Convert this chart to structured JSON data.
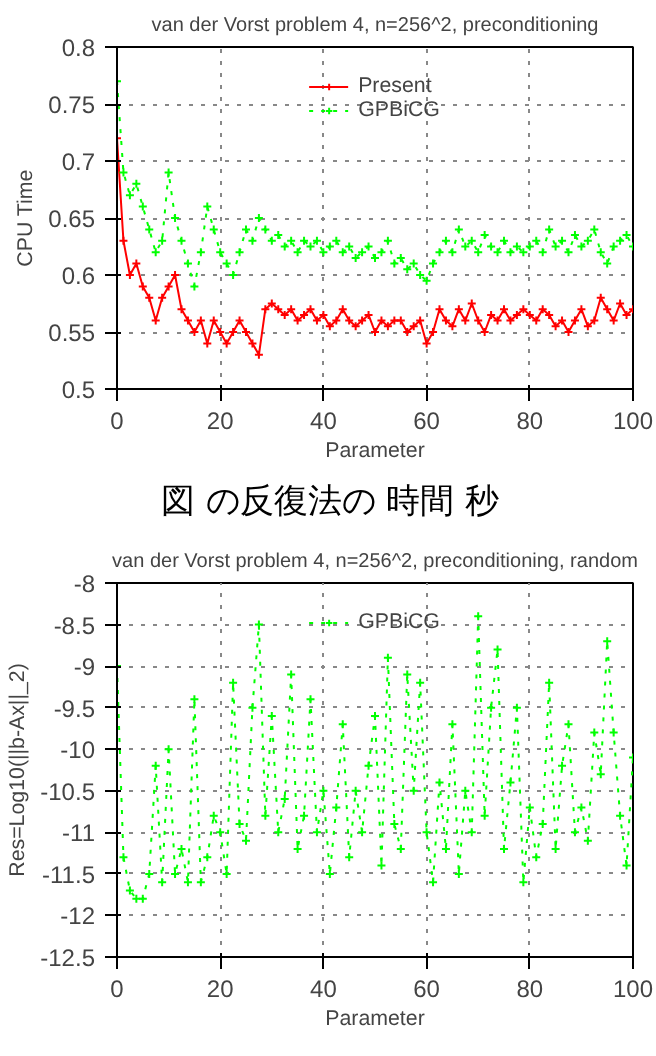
{
  "chart_data": [
    {
      "type": "line",
      "title": "van der Vorst problem 4, n=256^2, preconditioning",
      "xlabel": "Parameter",
      "ylabel": "CPU Time",
      "x": [
        0,
        1.25,
        2.5,
        3.75,
        5,
        6.25,
        7.5,
        8.75,
        10,
        11.25,
        12.5,
        13.75,
        15,
        16.25,
        17.5,
        18.75,
        20,
        21.25,
        22.5,
        23.75,
        25,
        26.25,
        27.5,
        28.75,
        30,
        31.25,
        32.5,
        33.75,
        35,
        36.25,
        37.5,
        38.75,
        40,
        41.25,
        42.5,
        43.75,
        45,
        46.25,
        47.5,
        48.75,
        50,
        51.25,
        52.5,
        53.75,
        55,
        56.25,
        57.5,
        58.75,
        60,
        61.25,
        62.5,
        63.75,
        65,
        66.25,
        67.5,
        68.75,
        70,
        71.25,
        72.5,
        73.75,
        75,
        76.25,
        77.5,
        78.75,
        80,
        81.25,
        82.5,
        83.75,
        85,
        86.25,
        87.5,
        88.75,
        90,
        91.25,
        92.5,
        93.75,
        95,
        96.25,
        97.5,
        98.75,
        100
      ],
      "series": [
        {
          "name": "Present",
          "color": "#ff0000",
          "marker": "cross",
          "line_style": "solid",
          "values": [
            0.72,
            0.63,
            0.6,
            0.61,
            0.59,
            0.58,
            0.56,
            0.58,
            0.59,
            0.6,
            0.57,
            0.56,
            0.55,
            0.56,
            0.54,
            0.56,
            0.55,
            0.54,
            0.55,
            0.56,
            0.55,
            0.54,
            0.53,
            0.57,
            0.575,
            0.57,
            0.565,
            0.57,
            0.56,
            0.565,
            0.57,
            0.56,
            0.565,
            0.555,
            0.56,
            0.57,
            0.56,
            0.555,
            0.56,
            0.565,
            0.55,
            0.56,
            0.555,
            0.56,
            0.56,
            0.55,
            0.555,
            0.56,
            0.54,
            0.55,
            0.57,
            0.56,
            0.555,
            0.57,
            0.56,
            0.575,
            0.56,
            0.55,
            0.565,
            0.56,
            0.57,
            0.56,
            0.565,
            0.57,
            0.565,
            0.56,
            0.57,
            0.565,
            0.555,
            0.56,
            0.55,
            0.56,
            0.57,
            0.555,
            0.56,
            0.58,
            0.57,
            0.56,
            0.575,
            0.565,
            0.57
          ]
        },
        {
          "name": "GPBiCG",
          "color": "#00ff00",
          "marker": "cross",
          "line_style": "dotted",
          "values": [
            0.77,
            0.69,
            0.67,
            0.68,
            0.66,
            0.64,
            0.62,
            0.63,
            0.69,
            0.65,
            0.63,
            0.61,
            0.59,
            0.62,
            0.66,
            0.64,
            0.62,
            0.61,
            0.6,
            0.62,
            0.64,
            0.63,
            0.65,
            0.64,
            0.63,
            0.635,
            0.625,
            0.63,
            0.62,
            0.63,
            0.625,
            0.63,
            0.62,
            0.625,
            0.63,
            0.62,
            0.625,
            0.615,
            0.62,
            0.625,
            0.615,
            0.62,
            0.63,
            0.61,
            0.615,
            0.605,
            0.61,
            0.6,
            0.595,
            0.61,
            0.62,
            0.63,
            0.62,
            0.64,
            0.625,
            0.63,
            0.62,
            0.635,
            0.625,
            0.62,
            0.63,
            0.62,
            0.625,
            0.62,
            0.625,
            0.63,
            0.62,
            0.64,
            0.625,
            0.63,
            0.62,
            0.635,
            0.625,
            0.63,
            0.64,
            0.62,
            0.61,
            0.625,
            0.63,
            0.635,
            0.625
          ]
        }
      ],
      "xlim": [
        0,
        100
      ],
      "xticks": [
        0,
        20,
        40,
        60,
        80,
        100
      ],
      "ylim": [
        0.5,
        0.8
      ],
      "yticks": [
        0.5,
        0.55,
        0.6,
        0.65,
        0.7,
        0.75,
        0.8
      ],
      "grid": true,
      "legend": "top",
      "annotations": [
        "図 の反復法の 時間 秒"
      ]
    },
    {
      "type": "line",
      "title": "van der Vorst problem 4, n=256^2, preconditioning, random",
      "xlabel": "Parameter",
      "ylabel": "Res=Log10(||b-Ax||_2)",
      "x": [
        0,
        1.25,
        2.5,
        3.75,
        5,
        6.25,
        7.5,
        8.75,
        10,
        11.25,
        12.5,
        13.75,
        15,
        16.25,
        17.5,
        18.75,
        20,
        21.25,
        22.5,
        23.75,
        25,
        26.25,
        27.5,
        28.75,
        30,
        31.25,
        32.5,
        33.75,
        35,
        36.25,
        37.5,
        38.75,
        40,
        41.25,
        42.5,
        43.75,
        45,
        46.25,
        47.5,
        48.75,
        50,
        51.25,
        52.5,
        53.75,
        55,
        56.25,
        57.5,
        58.75,
        60,
        61.25,
        62.5,
        63.75,
        65,
        66.25,
        67.5,
        68.75,
        70,
        71.25,
        72.5,
        73.75,
        75,
        76.25,
        77.5,
        78.75,
        80,
        81.25,
        82.5,
        83.75,
        85,
        86.25,
        87.5,
        88.75,
        90,
        91.25,
        92.5,
        93.75,
        95,
        96.25,
        97.5,
        98.75,
        100
      ],
      "series": [
        {
          "name": "GPBiCG",
          "color": "#00ff00",
          "marker": "cross",
          "line_style": "dotted",
          "values": [
            -9.0,
            -11.3,
            -11.7,
            -11.8,
            -11.8,
            -11.5,
            -10.2,
            -11.6,
            -10.0,
            -11.5,
            -11.2,
            -11.6,
            -9.4,
            -11.6,
            -11.3,
            -10.8,
            -11.0,
            -11.5,
            -9.2,
            -10.9,
            -11.1,
            -9.5,
            -8.5,
            -10.8,
            -9.6,
            -11.0,
            -10.6,
            -9.1,
            -11.2,
            -10.8,
            -9.4,
            -11.0,
            -10.5,
            -11.5,
            -10.7,
            -9.7,
            -11.3,
            -10.5,
            -11.0,
            -10.2,
            -9.6,
            -11.4,
            -8.9,
            -10.9,
            -11.2,
            -9.1,
            -10.5,
            -9.2,
            -11.0,
            -11.6,
            -10.4,
            -11.2,
            -9.7,
            -11.5,
            -10.5,
            -11.0,
            -8.4,
            -10.8,
            -9.5,
            -8.8,
            -11.2,
            -10.4,
            -9.5,
            -11.6,
            -10.7,
            -11.3,
            -10.9,
            -9.2,
            -11.2,
            -10.2,
            -9.7,
            -11.0,
            -10.7,
            -11.1,
            -9.8,
            -10.3,
            -8.7,
            -9.8,
            -10.8,
            -11.4,
            -10.1
          ]
        }
      ],
      "xlim": [
        0,
        100
      ],
      "xticks": [
        0,
        20,
        40,
        60,
        80,
        100
      ],
      "ylim": [
        -12.5,
        -8
      ],
      "yticks": [
        -12.5,
        -12,
        -11.5,
        -11,
        -10.5,
        -10,
        -9.5,
        -9,
        -8.5,
        -8
      ],
      "grid": true,
      "legend": "top"
    }
  ]
}
